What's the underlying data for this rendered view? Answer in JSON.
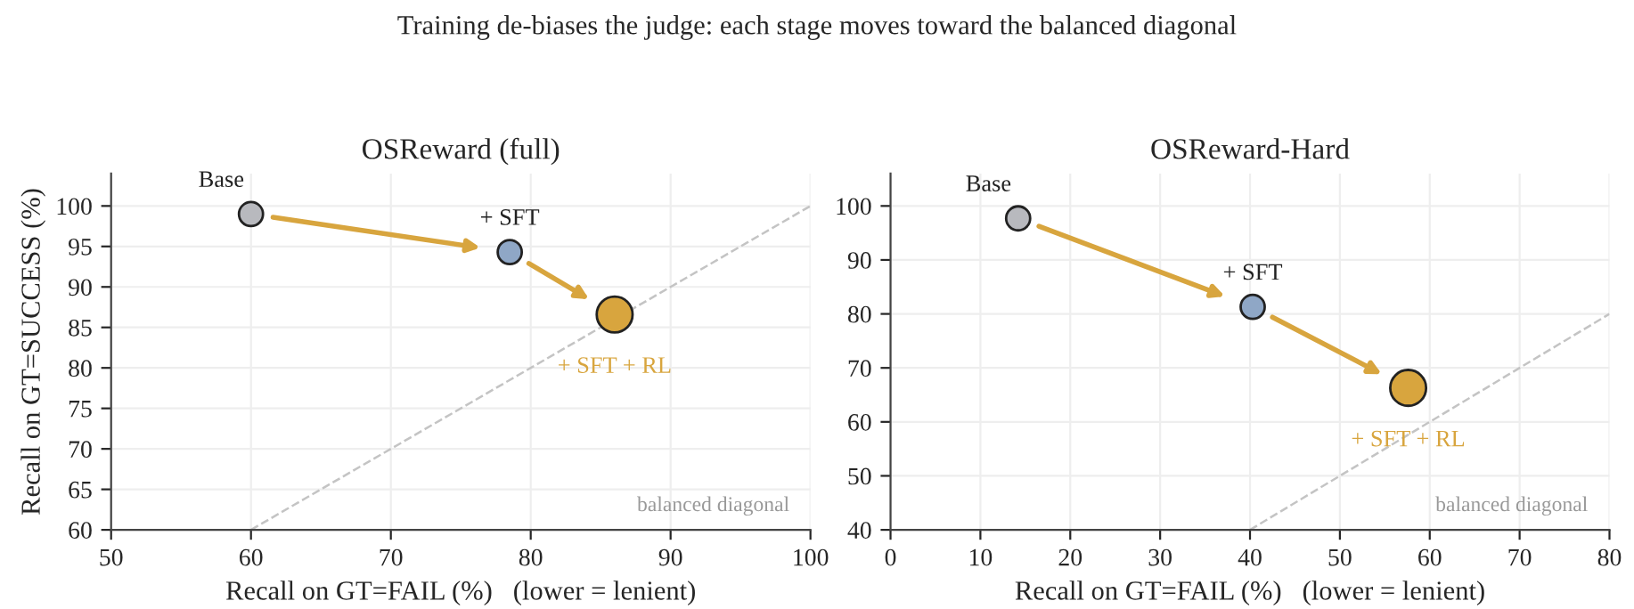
{
  "chart_data": [
    {
      "type": "bubble",
      "title": "OSReward (full)",
      "xlabel": "Recall on GT=FAIL (%)   (lower = lenient)",
      "ylabel": "Recall on GT=SUCCESS (%)",
      "xlim": [
        50,
        100
      ],
      "xticks": [
        50,
        60,
        70,
        80,
        90,
        100
      ],
      "ylim": [
        60,
        104
      ],
      "yticks": [
        60,
        65,
        70,
        75,
        80,
        85,
        90,
        95,
        100
      ],
      "grid": true,
      "series": [
        {
          "type": "bubble",
          "x": [
            60,
            78.5,
            86
          ],
          "values": [
            99,
            94.3,
            86.6
          ],
          "sizes": [
            0.45,
            0.45,
            1
          ],
          "colors": [
            "#b8b9be",
            "#8fa7c6",
            "#d8a53e"
          ]
        },
        {
          "type": "line",
          "x": [
            60,
            100
          ],
          "values": [
            60,
            100
          ],
          "color": "#c4c4c4",
          "line_style": "dashed"
        }
      ],
      "annotations": [
        {
          "text": "Base",
          "x": 60,
          "y": 99
        },
        {
          "text": "+ SFT",
          "x": 78.5,
          "y": 94.3
        },
        {
          "text": "+ SFT + RL",
          "x": 86,
          "y": 86.6
        },
        "balanced diagonal"
      ]
    },
    {
      "type": "bubble",
      "title": "OSReward-Hard",
      "xlabel": "Recall on GT=FAIL (%)   (lower = lenient)",
      "xlim": [
        0,
        80
      ],
      "xticks": [
        0,
        10,
        20,
        30,
        40,
        50,
        60,
        70,
        80
      ],
      "ylim": [
        40,
        106
      ],
      "yticks": [
        40,
        50,
        60,
        70,
        80,
        90,
        100
      ],
      "grid": true,
      "series": [
        {
          "type": "bubble",
          "x": [
            14.2,
            40.3,
            57.6
          ],
          "values": [
            97.7,
            81.3,
            66.3
          ],
          "sizes": [
            0.45,
            0.45,
            1
          ],
          "colors": [
            "#b8b9be",
            "#8fa7c6",
            "#d8a53e"
          ]
        },
        {
          "type": "line",
          "x": [
            40,
            80
          ],
          "values": [
            40,
            80
          ],
          "color": "#c4c4c4",
          "line_style": "dashed"
        }
      ],
      "annotations": [
        {
          "text": "Base",
          "x": 14.2,
          "y": 97.7
        },
        {
          "text": "+ SFT",
          "x": 40.3,
          "y": 81.3
        },
        {
          "text": "+ SFT + RL",
          "x": 57.6,
          "y": 66.3
        },
        "balanced diagonal"
      ]
    },
    {
      "type": "other",
      "title": "Training de-biases the judge: each stage moves toward the balanced diagonal"
    }
  ]
}
